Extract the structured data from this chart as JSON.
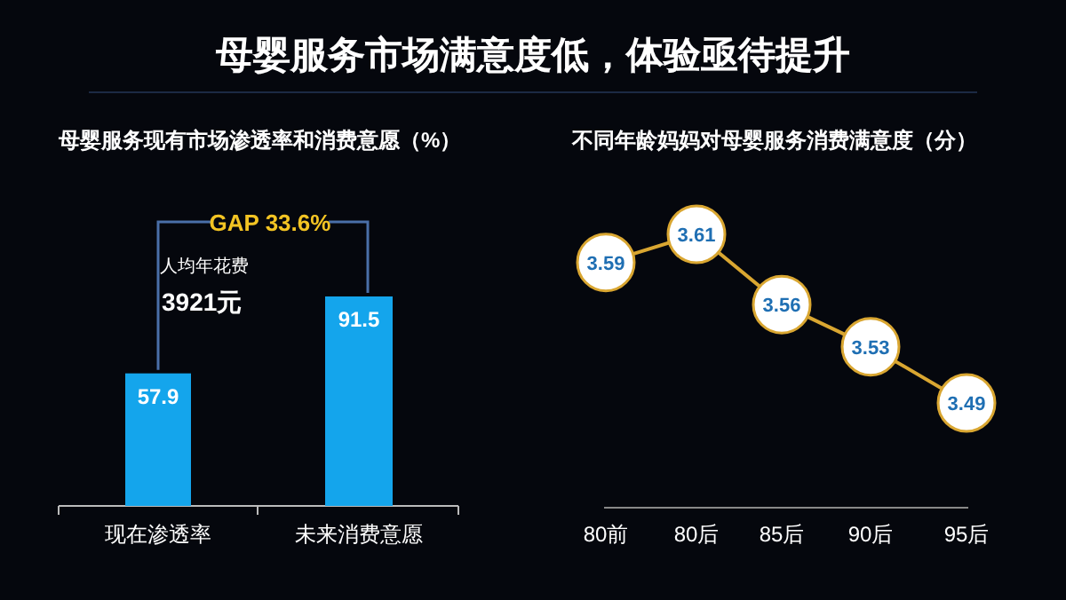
{
  "chart_data": [
    {
      "type": "bar",
      "title": "母婴服务市场满意度低，体验亟待提升",
      "subtitle": "母婴服务现有市场渗透率和消费意愿（%）",
      "categories": [
        "现在渗透率",
        "未来消费意愿"
      ],
      "values": [
        57.9,
        91.5
      ],
      "color": "#14a5ec",
      "data_labels": true,
      "annotations": [
        "GAP 33.6%",
        "人均年花费",
        "3921元"
      ]
    },
    {
      "type": "line",
      "title": "不同年龄妈妈对母婴服务消费满意度（分）",
      "categories": [
        "80前",
        "80后",
        "85后",
        "90后",
        "95后"
      ],
      "values": [
        3.59,
        3.61,
        3.56,
        3.53,
        3.49
      ],
      "color": "#d9a631",
      "marker": "circle",
      "line_style": "solid",
      "data_labels": true
    }
  ]
}
